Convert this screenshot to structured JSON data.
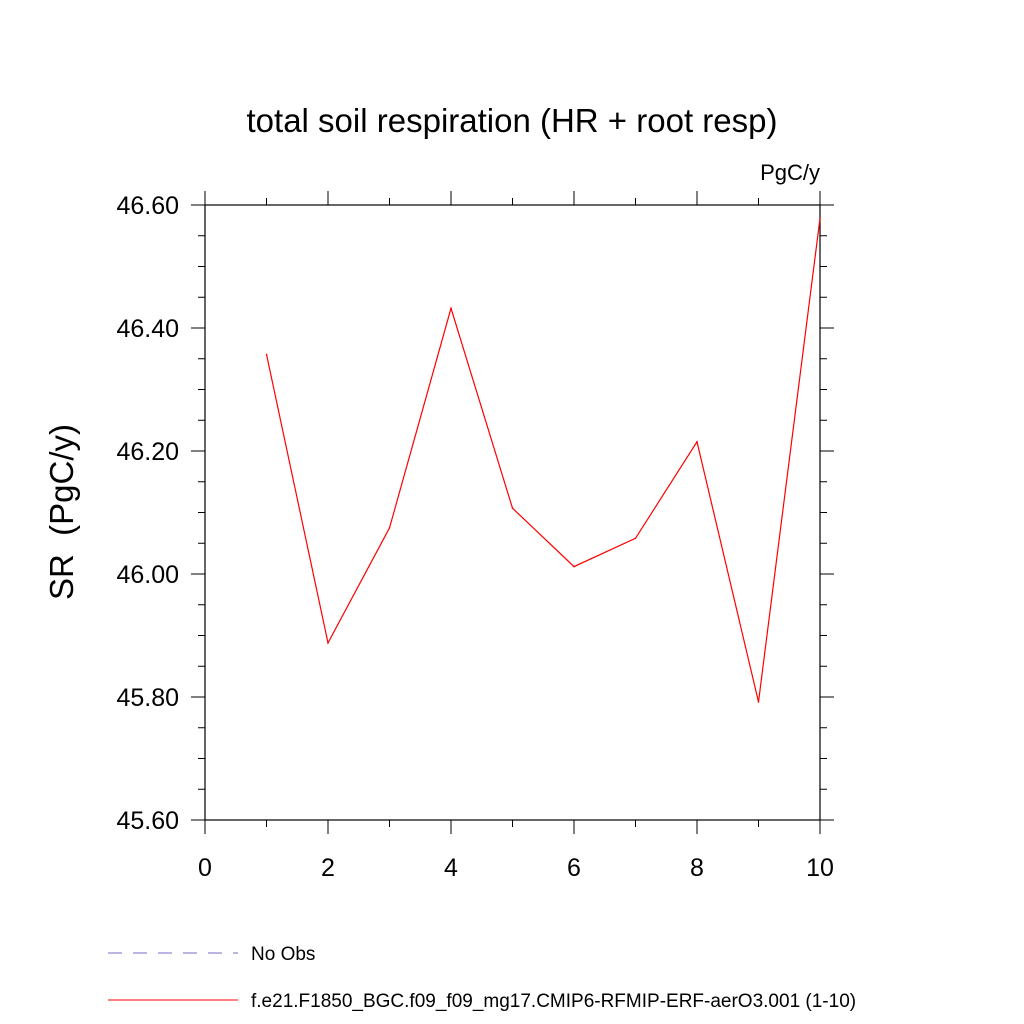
{
  "chart_data": {
    "type": "line",
    "title": "total soil respiration (HR + root resp)",
    "units_label": "PgC/y",
    "xlabel": "",
    "ylabel": "SR  (PgC/y)",
    "xlim": [
      0,
      10
    ],
    "ylim": [
      45.6,
      46.6
    ],
    "x_ticks": [
      0,
      2,
      4,
      6,
      8,
      10
    ],
    "x_tick_labels": [
      "0",
      "2",
      "4",
      "6",
      "8",
      "10"
    ],
    "y_ticks": [
      45.6,
      45.8,
      46.0,
      46.2,
      46.4,
      46.6
    ],
    "y_tick_labels": [
      "45.60",
      "45.80",
      "46.00",
      "46.20",
      "46.40",
      "46.60"
    ],
    "grid": false,
    "series": [
      {
        "name": "f.e21.F1850_BGC.f09_f09_mg17.CMIP6-RFMIP-ERF-aerO3.001 (1-10)",
        "color": "#ff0000",
        "x": [
          1,
          2,
          3,
          4,
          5,
          6,
          7,
          8,
          9,
          10
        ],
        "values": [
          46.357,
          45.888,
          46.075,
          46.432,
          46.107,
          46.012,
          46.058,
          46.215,
          45.792,
          46.578
        ]
      }
    ],
    "legend": [
      {
        "label": "No Obs",
        "color": "#7b68c8",
        "style": "dashed"
      },
      {
        "label": "f.e21.F1850_BGC.f09_f09_mg17.CMIP6-RFMIP-ERF-aerO3.001 (1-10)",
        "color": "#ff0000",
        "style": "solid"
      }
    ],
    "legend_position": "bottom-left"
  }
}
